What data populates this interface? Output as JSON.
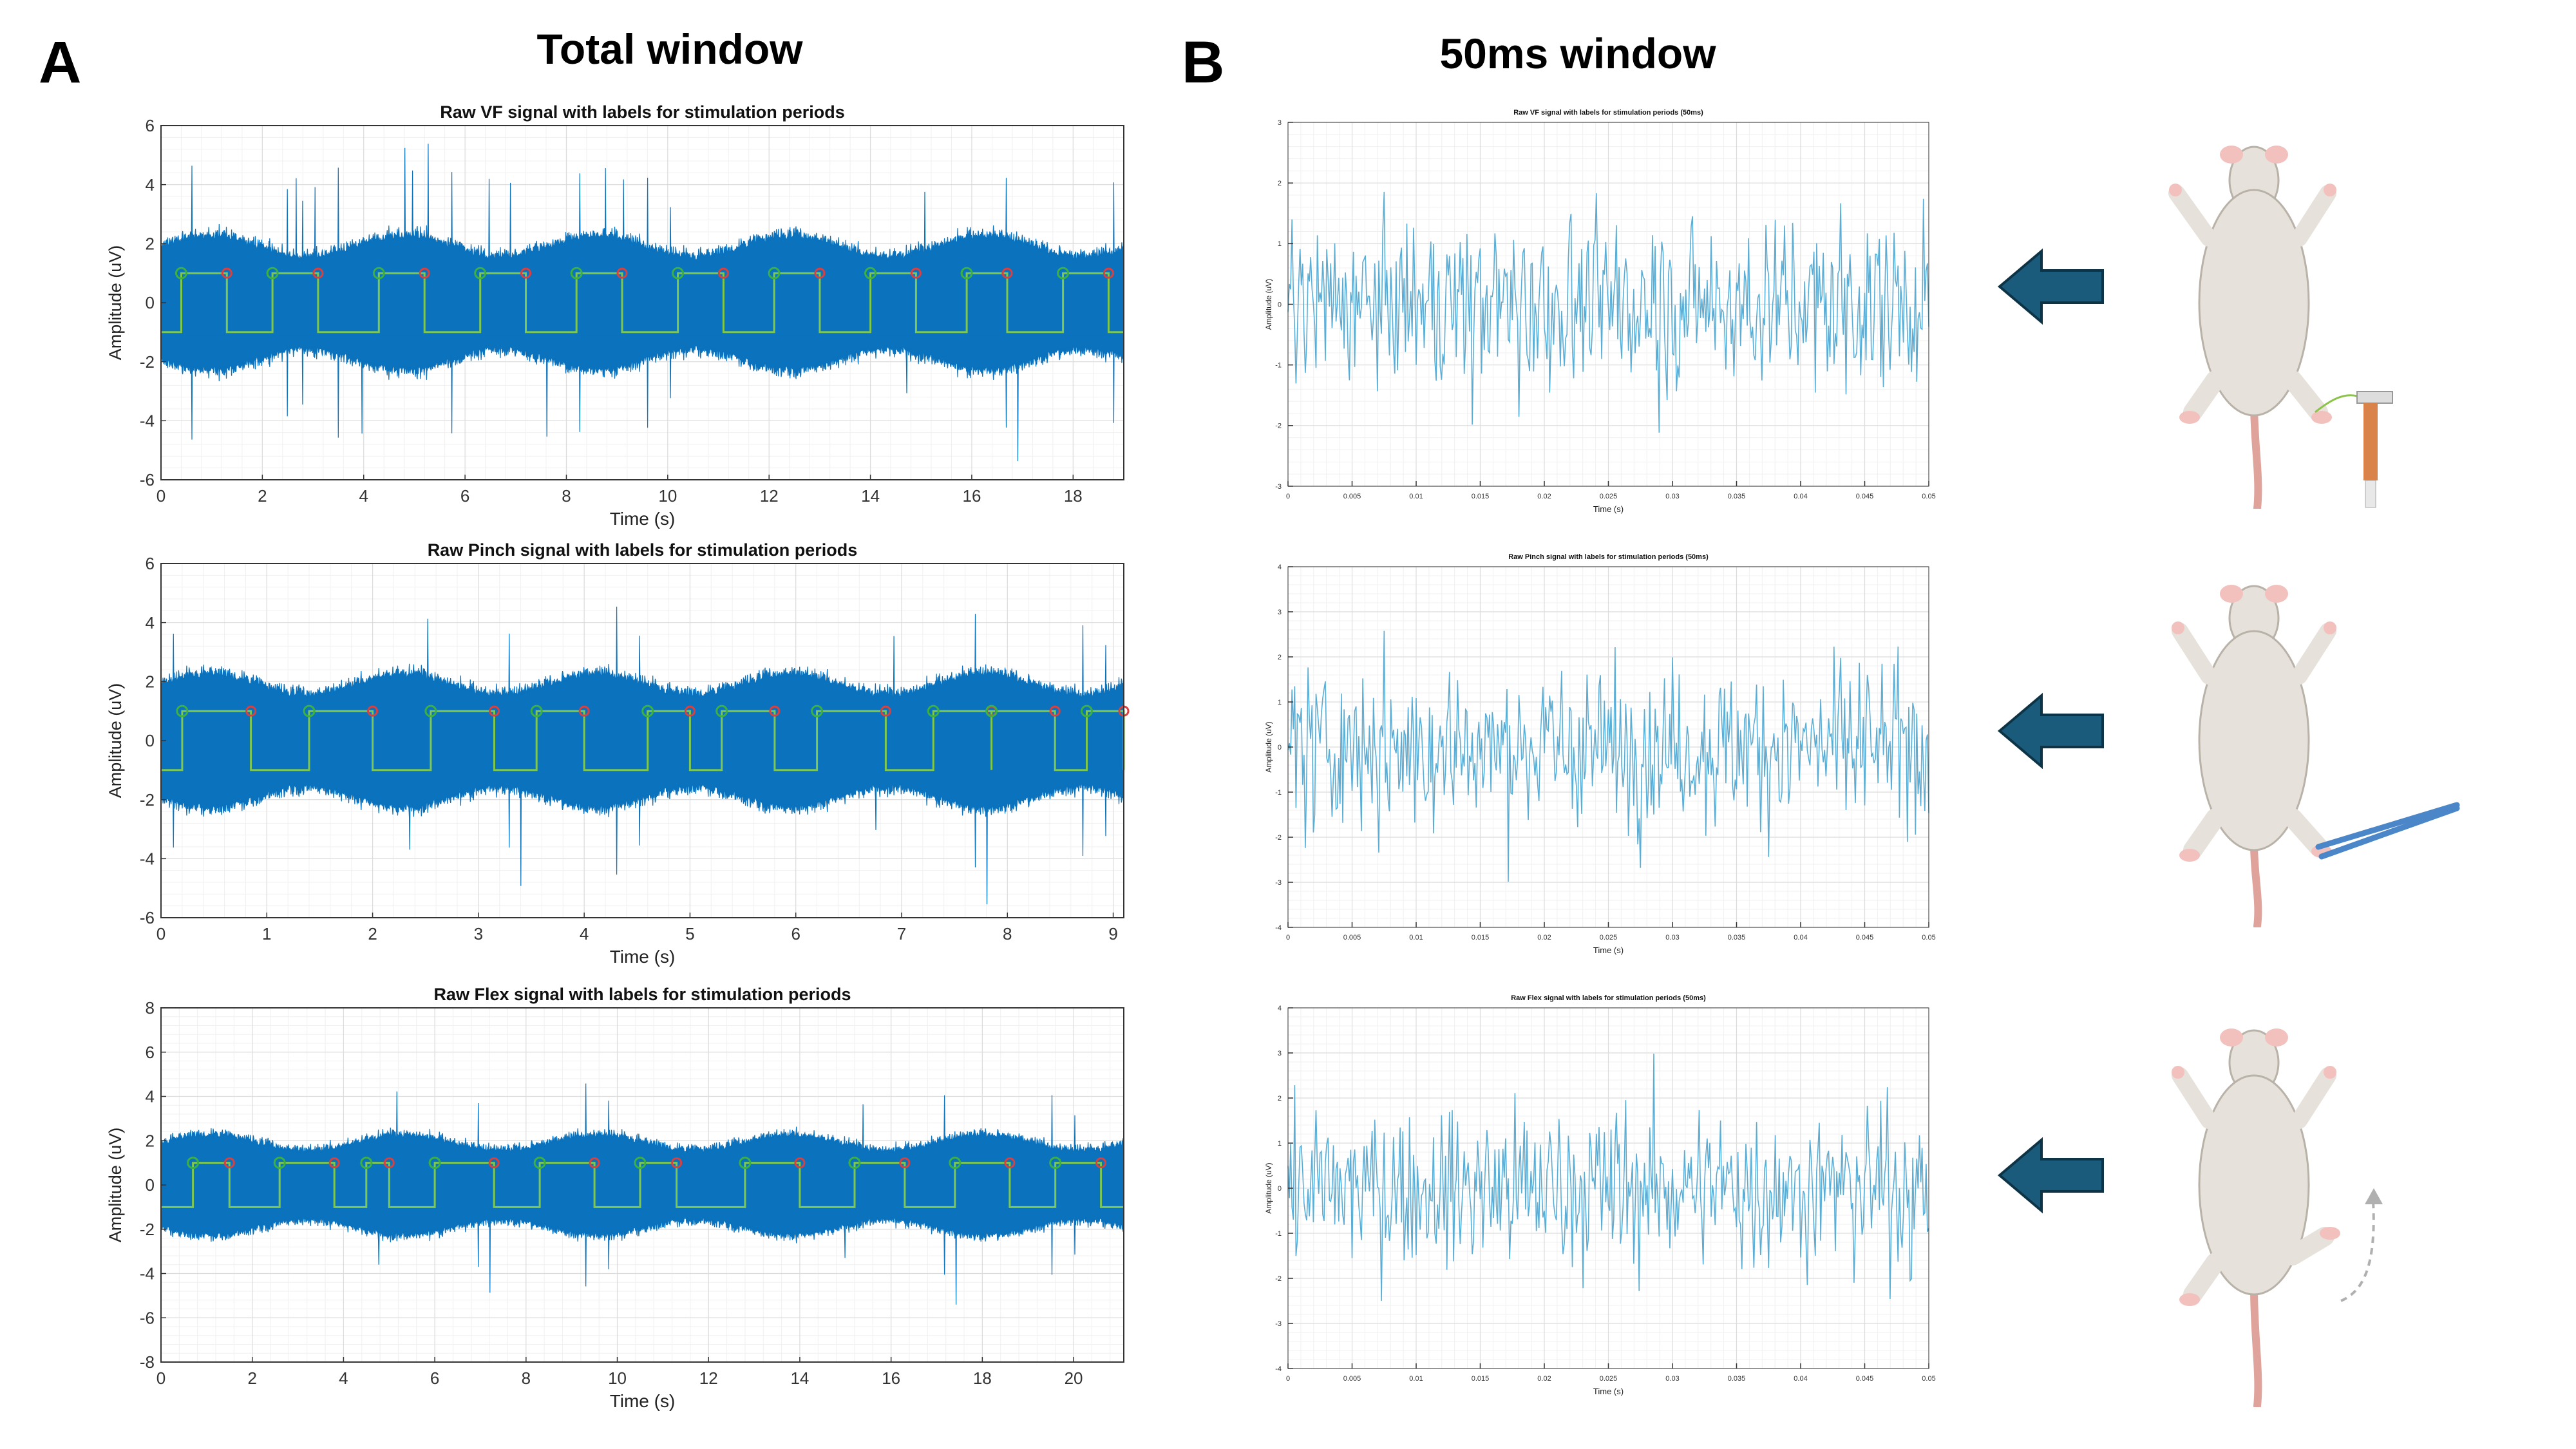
{
  "panels": {
    "a_letter": "A",
    "b_letter": "B",
    "a_title": "Total window",
    "b_title": "50ms window"
  },
  "colors": {
    "signal": "#0b72bd",
    "label_line": "#7ec850",
    "start_marker": "#3cb043",
    "end_marker": "#d94040",
    "zoom_signal": "#5aaed6",
    "arrow": "#1a5a7a",
    "grid": "#e6e6e6"
  },
  "icons": [
    "arrow-left-icon",
    "rat-with-von-frey-filament-icon",
    "rat-with-forceps-pinch-icon",
    "rat-with-flexed-hindlimb-icon"
  ],
  "chart_data": [
    {
      "type": "line",
      "title": "Raw VF signal with labels for stimulation periods",
      "xlabel": "Time (s)",
      "ylabel": "Amplitude (uV)",
      "xlim": [
        0,
        19
      ],
      "ylim": [
        -6,
        6
      ],
      "xticks": [
        0,
        2,
        4,
        6,
        8,
        10,
        12,
        14,
        16,
        18
      ],
      "yticks": [
        -6,
        -4,
        -2,
        0,
        2,
        4,
        6
      ],
      "grid": true,
      "series": [
        {
          "values_summary": "noise band ~±2.5 uV with peaks to ±5"
        }
      ],
      "stim_label_high": 1,
      "stim_label_low": -1,
      "stim_periods": [
        [
          0.4,
          1.3
        ],
        [
          2.2,
          3.1
        ],
        [
          4.3,
          5.2
        ],
        [
          6.3,
          7.2
        ],
        [
          8.2,
          9.1
        ],
        [
          10.2,
          11.1
        ],
        [
          12.1,
          13.0
        ],
        [
          14.0,
          14.9
        ],
        [
          15.9,
          16.7
        ],
        [
          17.8,
          18.7
        ]
      ]
    },
    {
      "type": "line",
      "title": "Raw Pinch signal with labels for stimulation periods",
      "xlabel": "Time (s)",
      "ylabel": "Amplitude (uV)",
      "xlim": [
        0,
        9.1
      ],
      "ylim": [
        -6,
        6
      ],
      "xticks": [
        0,
        1,
        2,
        3,
        4,
        5,
        6,
        7,
        8,
        9
      ],
      "yticks": [
        -6,
        -4,
        -2,
        0,
        2,
        4,
        6
      ],
      "grid": true,
      "series": [
        {
          "values_summary": "noise band ~±2.5 uV with peaks to ±5"
        }
      ],
      "stim_label_high": 1,
      "stim_label_low": -1,
      "stim_periods": [
        [
          0.2,
          0.85
        ],
        [
          1.4,
          2.0
        ],
        [
          2.55,
          3.15
        ],
        [
          3.55,
          4.0
        ],
        [
          4.6,
          5.0
        ],
        [
          5.3,
          5.8
        ],
        [
          6.2,
          6.85
        ],
        [
          7.3,
          7.85
        ],
        [
          7.85,
          8.45
        ],
        [
          8.75,
          9.1
        ]
      ]
    },
    {
      "type": "line",
      "title": "Raw Flex signal with labels for stimulation periods",
      "xlabel": "Time (s)",
      "ylabel": "Amplitude (uV)",
      "xlim": [
        0,
        21.1
      ],
      "ylim": [
        -8,
        8
      ],
      "xticks": [
        0,
        2,
        4,
        6,
        8,
        10,
        12,
        14,
        16,
        18,
        20
      ],
      "yticks": [
        -8,
        -6,
        -4,
        -2,
        0,
        2,
        4,
        6,
        8
      ],
      "grid": true,
      "series": [
        {
          "values_summary": "noise band ~±2.5 uV with peaks to ±6.5"
        }
      ],
      "stim_label_high": 1,
      "stim_label_low": -1,
      "stim_periods": [
        [
          0.7,
          1.5
        ],
        [
          2.6,
          3.8
        ],
        [
          4.5,
          5.0
        ],
        [
          6.0,
          7.3
        ],
        [
          8.3,
          9.5
        ],
        [
          10.5,
          11.3
        ],
        [
          12.8,
          14.0
        ],
        [
          15.2,
          16.3
        ],
        [
          17.4,
          18.6
        ],
        [
          19.6,
          20.6
        ]
      ]
    },
    {
      "type": "line",
      "title": "Raw VF signal with labels for stimulation periods (50ms)",
      "xlabel": "Time (s)",
      "ylabel": "Amplitude (uV)",
      "xlim": [
        0,
        0.05
      ],
      "ylim": [
        -3,
        3
      ],
      "xticks": [
        0,
        0.005,
        0.01,
        0.015,
        0.02,
        0.025,
        0.03,
        0.035,
        0.04,
        0.045,
        0.05
      ],
      "yticks": [
        -3,
        -2,
        -1,
        0,
        1,
        2,
        3
      ],
      "grid": true,
      "series": [
        {
          "values_summary": "oscillating trace within about -2.7 to 2.5 uV"
        }
      ]
    },
    {
      "type": "line",
      "title": "Raw Pinch signal with labels for stimulation periods (50ms)",
      "xlabel": "Time (s)",
      "ylabel": "Amplitude (uV)",
      "xlim": [
        0,
        0.05
      ],
      "ylim": [
        -4,
        4
      ],
      "xticks": [
        0,
        0.005,
        0.01,
        0.015,
        0.02,
        0.025,
        0.03,
        0.035,
        0.04,
        0.045,
        0.05
      ],
      "yticks": [
        -4,
        -3,
        -2,
        -1,
        0,
        1,
        2,
        3,
        4
      ],
      "grid": true,
      "series": [
        {
          "values_summary": "oscillating trace within about -3 to 3.5 uV"
        }
      ]
    },
    {
      "type": "line",
      "title": "Raw Flex signal with labels for stimulation periods (50ms)",
      "xlabel": "Time (s)",
      "ylabel": "Amplitude (uV)",
      "xlim": [
        0,
        0.05
      ],
      "ylim": [
        -4,
        4
      ],
      "xticks": [
        0,
        0.005,
        0.01,
        0.015,
        0.02,
        0.025,
        0.03,
        0.035,
        0.04,
        0.045,
        0.05
      ],
      "yticks": [
        -4,
        -3,
        -2,
        -1,
        0,
        1,
        2,
        3,
        4
      ],
      "grid": true,
      "series": [
        {
          "values_summary": "oscillating trace within about -3 to 3 uV"
        }
      ]
    }
  ]
}
